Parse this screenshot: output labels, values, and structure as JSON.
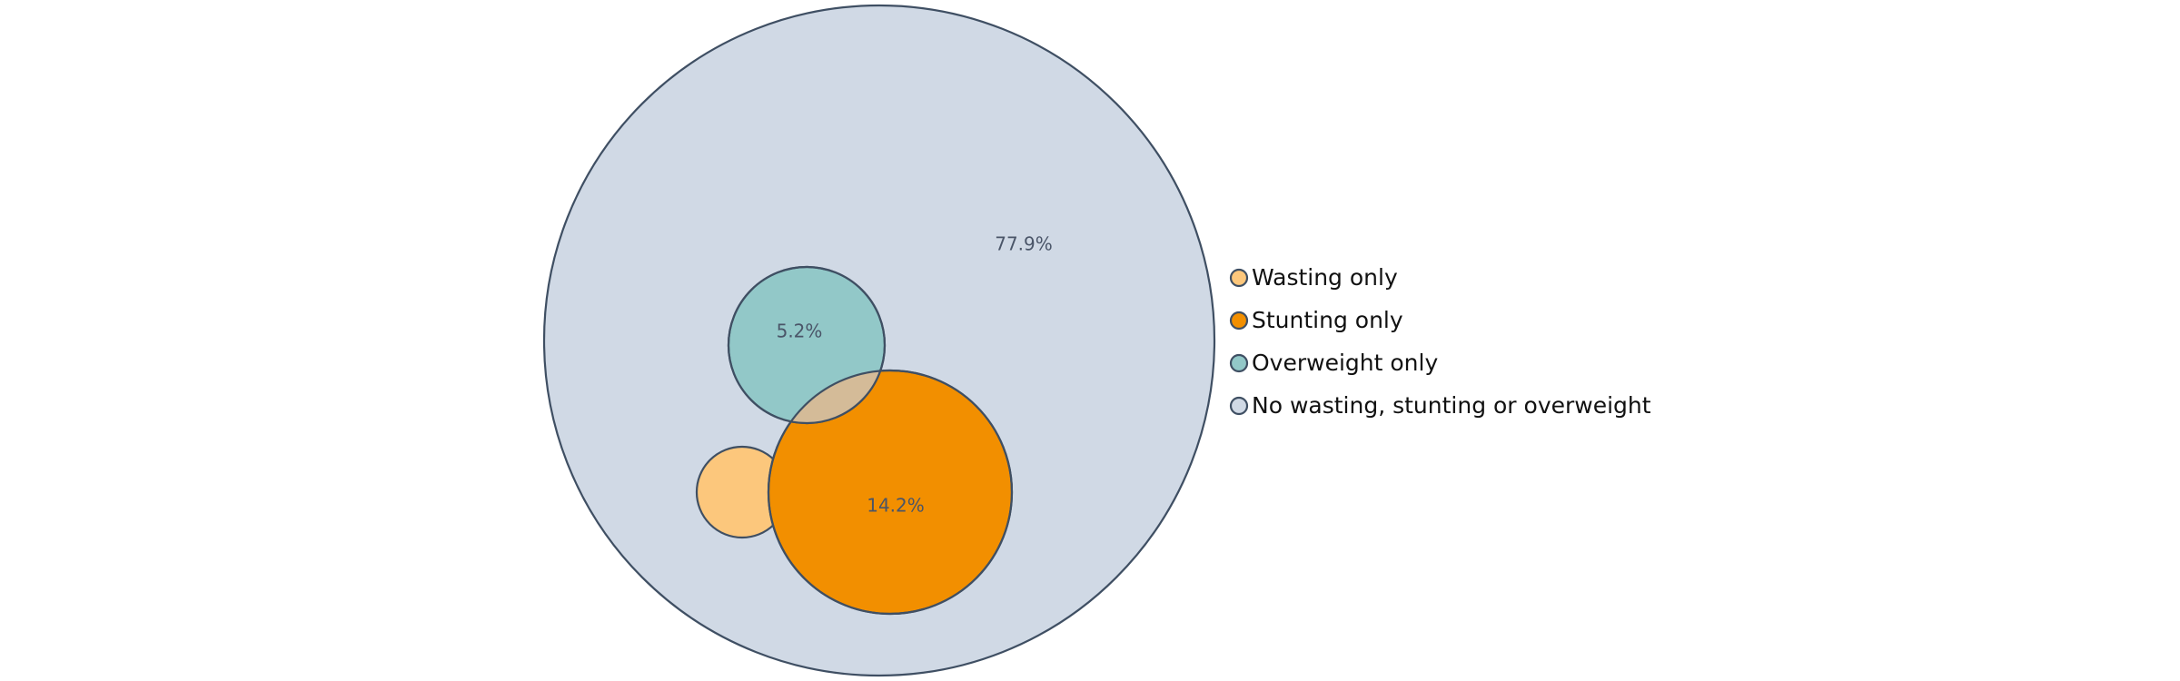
{
  "chart_data": {
    "type": "venn",
    "title": "",
    "series": [
      {
        "name": "No wasting, stunting or overweight",
        "value": 77.9,
        "label": "77.9%",
        "color": "#d0d9e5"
      },
      {
        "name": "Overweight only",
        "value": 5.2,
        "label": "5.2%",
        "color": "#92c8c8"
      },
      {
        "name": "Stunting only",
        "value": 14.2,
        "label": "14.2%",
        "color": "#f28f00"
      },
      {
        "name": "Wasting only",
        "value": null,
        "label": "",
        "color": "#fcc77c"
      }
    ],
    "overlap_color": "#d4bb98",
    "legend": {
      "placement": "right",
      "items": [
        "Wasting only",
        "Stunting only",
        "Overweight only",
        "No wasting, stunting or overweight"
      ]
    }
  }
}
